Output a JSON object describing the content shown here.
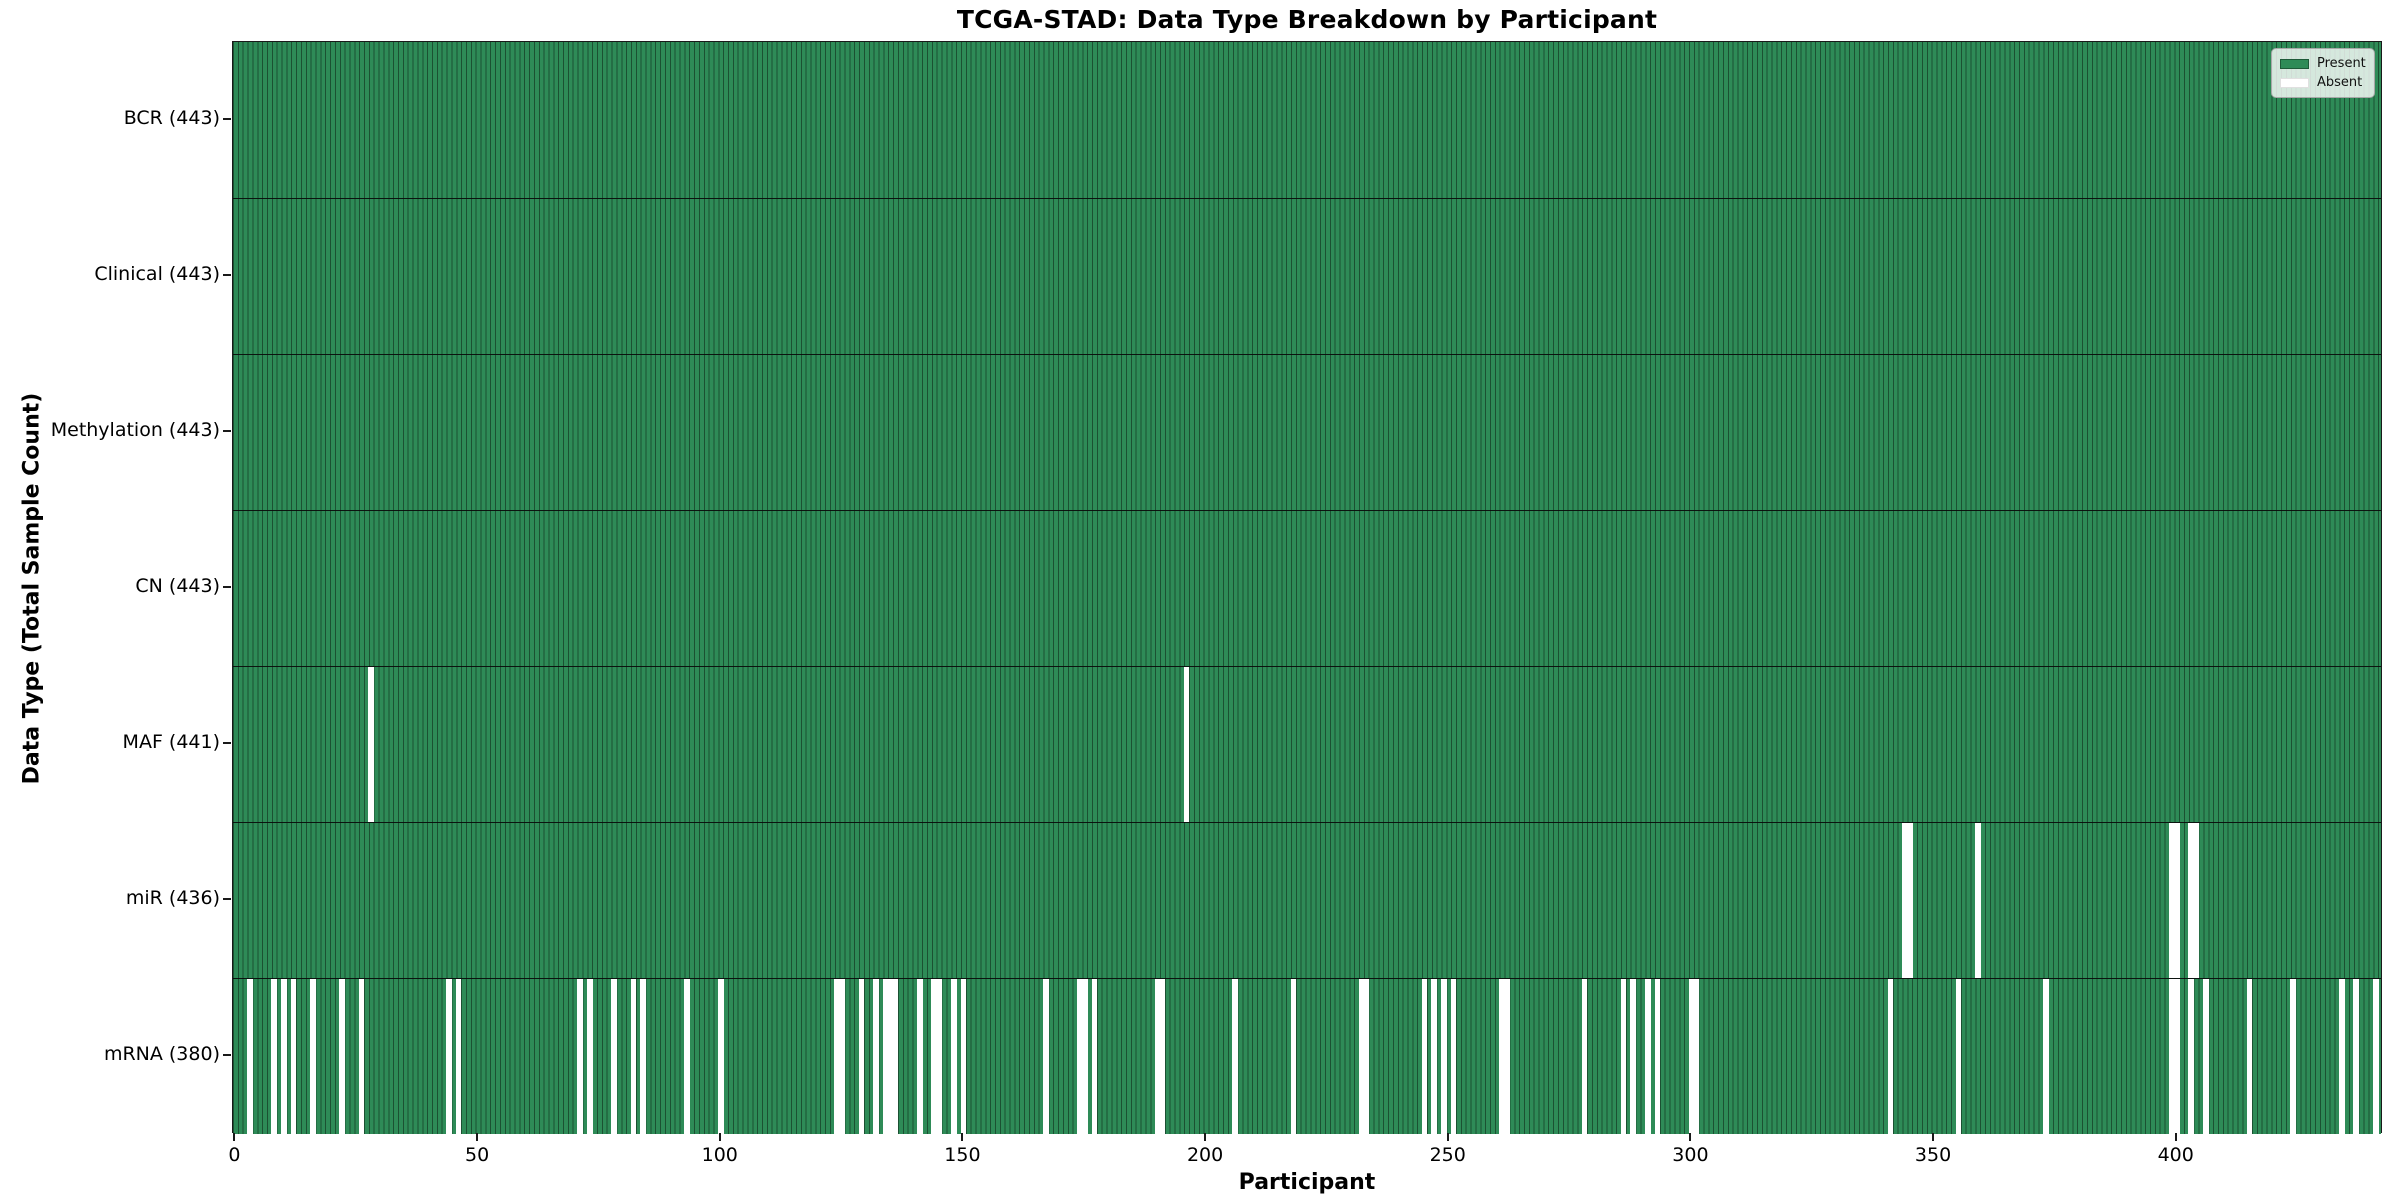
{
  "title": "TCGA-STAD: Data Type Breakdown by Participant",
  "x_axis": {
    "label": "Participant",
    "tick_labels": [
      "0",
      "50",
      "100",
      "150",
      "200",
      "250",
      "300",
      "350",
      "400"
    ]
  },
  "y_axis": {
    "label": "Data Type (Total Sample Count)"
  },
  "legend": {
    "present_label": "Present",
    "absent_label": "Absent",
    "present_color": "#2E8B57",
    "absent_color": "#FFFFFF"
  },
  "chart_data": {
    "type": "heatmap",
    "title": "TCGA-STAD: Data Type Breakdown by Participant",
    "xlabel": "Participant",
    "ylabel": "Data Type (Total Sample Count)",
    "n_participants": 443,
    "xlim": [
      -0.5,
      442.5
    ],
    "x_ticks": [
      0,
      50,
      100,
      150,
      200,
      250,
      300,
      350,
      400
    ],
    "present_color": "#2E8B57",
    "absent_color": "#FFFFFF",
    "legend_entries": [
      "Present",
      "Absent"
    ],
    "legend_position": "upper right",
    "grid": false,
    "rows": [
      {
        "label": "BCR (443)",
        "data_type": "BCR",
        "present_count": 443,
        "absent_participants": []
      },
      {
        "label": "Clinical (443)",
        "data_type": "Clinical",
        "present_count": 443,
        "absent_participants": []
      },
      {
        "label": "Methylation (443)",
        "data_type": "Methylation",
        "present_count": 443,
        "absent_participants": []
      },
      {
        "label": "CN (443)",
        "data_type": "CN",
        "present_count": 443,
        "absent_participants": []
      },
      {
        "label": "MAF (441)",
        "data_type": "MAF",
        "present_count": 441,
        "absent_participants": [
          28,
          196
        ]
      },
      {
        "label": "miR (436)",
        "data_type": "miR",
        "present_count": 436,
        "absent_participants": [
          344,
          345,
          359,
          399,
          400,
          403,
          404
        ]
      },
      {
        "label": "mRNA (380)",
        "data_type": "mRNA",
        "present_count": 380,
        "absent_participants": [
          3,
          8,
          10,
          12,
          16,
          22,
          26,
          44,
          46,
          71,
          73,
          78,
          82,
          84,
          93,
          100,
          124,
          125,
          129,
          132,
          134,
          135,
          136,
          141,
          144,
          145,
          148,
          150,
          167,
          174,
          175,
          177,
          190,
          191,
          206,
          218,
          232,
          233,
          245,
          247,
          249,
          251,
          261,
          262,
          278,
          286,
          288,
          291,
          293,
          300,
          301,
          341,
          355,
          373,
          399,
          400,
          403,
          406,
          415,
          424,
          434,
          437,
          441
        ]
      }
    ]
  }
}
